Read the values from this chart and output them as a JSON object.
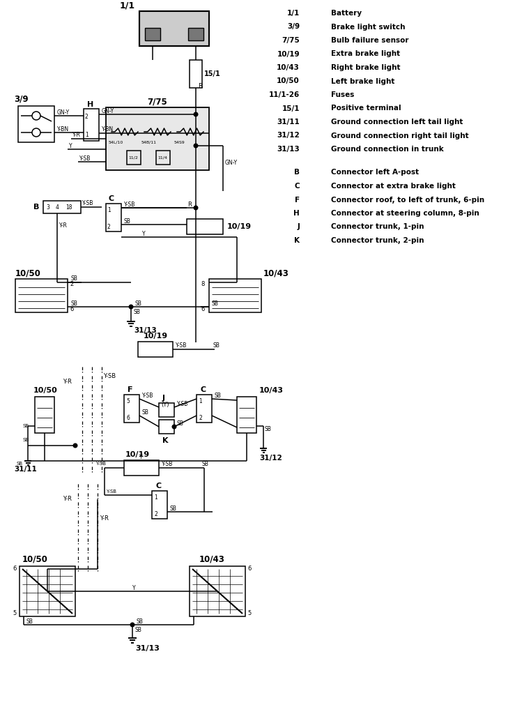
{
  "bg_color": "#ffffff",
  "legend_items": [
    [
      "1/1",
      "Battery"
    ],
    [
      "3/9",
      "Brake light switch"
    ],
    [
      "7/75",
      "Bulb failure sensor"
    ],
    [
      "10/19",
      "Extra brake light"
    ],
    [
      "10/43",
      "Right brake light"
    ],
    [
      "10/50",
      "Left brake light"
    ],
    [
      "11/1-26",
      "Fuses"
    ],
    [
      "15/1",
      "Positive terminal"
    ],
    [
      "31/11",
      "Ground connection left tail light"
    ],
    [
      "31/12",
      "Ground connection right tail light"
    ],
    [
      "31/13",
      "Ground connection in trunk"
    ],
    [
      "B",
      "Connector left A-post"
    ],
    [
      "C",
      "Connector at extra brake light"
    ],
    [
      "F",
      "Connector roof, to left of trunk, 6-pin"
    ],
    [
      "H",
      "Connector at steering column, 8-pin"
    ],
    [
      "J",
      "Connector trunk, 1-pin"
    ],
    [
      "K",
      "Connector trunk, 2-pin"
    ]
  ]
}
